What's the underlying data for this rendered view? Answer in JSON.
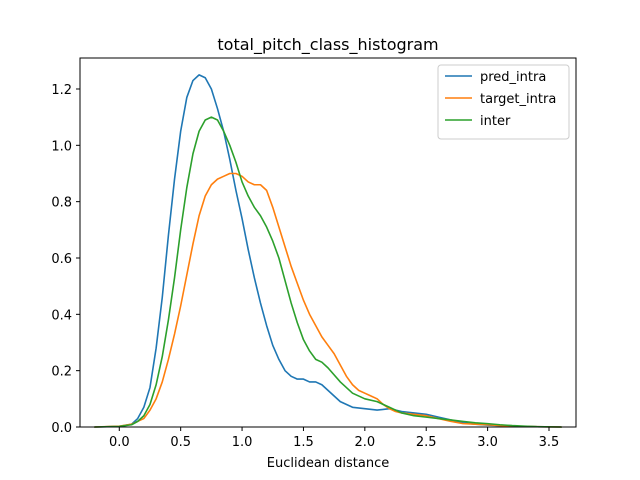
{
  "chart_data": {
    "type": "line",
    "title": "total_pitch_class_histogram",
    "xlabel": "Euclidean distance",
    "ylabel": "",
    "xlim": [
      -0.32,
      3.72
    ],
    "ylim": [
      0,
      1.31
    ],
    "xticks": [
      0.0,
      0.5,
      1.0,
      1.5,
      2.0,
      2.5,
      3.0,
      3.5
    ],
    "xtick_labels": [
      "0.0",
      "0.5",
      "1.0",
      "1.5",
      "2.0",
      "2.5",
      "3.0",
      "3.5"
    ],
    "yticks": [
      0.0,
      0.2,
      0.4,
      0.6,
      0.8,
      1.0,
      1.2
    ],
    "ytick_labels": [
      "0.0",
      "0.2",
      "0.4",
      "0.6",
      "0.8",
      "1.0",
      "1.2"
    ],
    "grid": false,
    "legend_position": "top-right",
    "series": [
      {
        "name": "pred_intra",
        "color": "#1f77b4",
        "x": [
          -0.2,
          0.0,
          0.1,
          0.15,
          0.2,
          0.25,
          0.3,
          0.35,
          0.4,
          0.45,
          0.5,
          0.55,
          0.6,
          0.65,
          0.7,
          0.75,
          0.8,
          0.85,
          0.9,
          0.95,
          1.0,
          1.05,
          1.1,
          1.15,
          1.2,
          1.25,
          1.3,
          1.35,
          1.4,
          1.45,
          1.5,
          1.55,
          1.6,
          1.65,
          1.7,
          1.8,
          1.9,
          2.0,
          2.1,
          2.2,
          2.3,
          2.4,
          2.5,
          2.6,
          2.7,
          2.8,
          2.9,
          3.0,
          3.1,
          3.2,
          3.3,
          3.4,
          3.6
        ],
        "y": [
          0.0,
          0.002,
          0.01,
          0.03,
          0.07,
          0.14,
          0.28,
          0.46,
          0.68,
          0.88,
          1.05,
          1.17,
          1.23,
          1.25,
          1.24,
          1.2,
          1.13,
          1.05,
          0.95,
          0.84,
          0.74,
          0.63,
          0.53,
          0.44,
          0.36,
          0.29,
          0.24,
          0.2,
          0.18,
          0.17,
          0.17,
          0.16,
          0.16,
          0.15,
          0.13,
          0.09,
          0.07,
          0.065,
          0.06,
          0.065,
          0.055,
          0.05,
          0.045,
          0.035,
          0.025,
          0.015,
          0.01,
          0.007,
          0.005,
          0.003,
          0.002,
          0.001,
          0.0
        ]
      },
      {
        "name": "target_intra",
        "color": "#ff7f0e",
        "x": [
          -0.2,
          0.0,
          0.1,
          0.2,
          0.25,
          0.3,
          0.35,
          0.4,
          0.45,
          0.5,
          0.55,
          0.6,
          0.65,
          0.7,
          0.75,
          0.8,
          0.85,
          0.9,
          0.95,
          1.0,
          1.05,
          1.1,
          1.15,
          1.2,
          1.25,
          1.3,
          1.35,
          1.4,
          1.45,
          1.5,
          1.55,
          1.6,
          1.65,
          1.7,
          1.75,
          1.8,
          1.85,
          1.9,
          1.95,
          2.0,
          2.05,
          2.1,
          2.15,
          2.2,
          2.25,
          2.3,
          2.4,
          2.5,
          2.6,
          2.7,
          2.8,
          2.9,
          3.0,
          3.1,
          3.2,
          3.3,
          3.4,
          3.6
        ],
        "y": [
          0.0,
          0.003,
          0.01,
          0.03,
          0.06,
          0.1,
          0.16,
          0.24,
          0.33,
          0.43,
          0.54,
          0.65,
          0.75,
          0.82,
          0.86,
          0.88,
          0.89,
          0.9,
          0.9,
          0.89,
          0.87,
          0.86,
          0.86,
          0.84,
          0.78,
          0.71,
          0.64,
          0.57,
          0.51,
          0.45,
          0.4,
          0.36,
          0.32,
          0.29,
          0.26,
          0.22,
          0.18,
          0.15,
          0.13,
          0.12,
          0.11,
          0.1,
          0.08,
          0.065,
          0.055,
          0.05,
          0.045,
          0.04,
          0.03,
          0.02,
          0.012,
          0.01,
          0.008,
          0.005,
          0.003,
          0.002,
          0.001,
          0.0
        ]
      },
      {
        "name": "inter",
        "color": "#2ca02c",
        "x": [
          -0.2,
          0.0,
          0.1,
          0.15,
          0.2,
          0.25,
          0.3,
          0.35,
          0.4,
          0.45,
          0.5,
          0.55,
          0.6,
          0.65,
          0.7,
          0.75,
          0.8,
          0.85,
          0.9,
          0.95,
          1.0,
          1.05,
          1.1,
          1.15,
          1.2,
          1.25,
          1.3,
          1.35,
          1.4,
          1.45,
          1.5,
          1.55,
          1.6,
          1.65,
          1.7,
          1.8,
          1.9,
          2.0,
          2.1,
          2.2,
          2.3,
          2.4,
          2.5,
          2.6,
          2.7,
          2.8,
          2.9,
          3.0,
          3.1,
          3.2,
          3.3,
          3.4,
          3.6
        ],
        "y": [
          0.0,
          0.002,
          0.008,
          0.02,
          0.04,
          0.08,
          0.15,
          0.25,
          0.38,
          0.53,
          0.7,
          0.85,
          0.97,
          1.05,
          1.09,
          1.1,
          1.09,
          1.05,
          1.0,
          0.94,
          0.87,
          0.82,
          0.78,
          0.75,
          0.71,
          0.66,
          0.6,
          0.52,
          0.44,
          0.37,
          0.31,
          0.27,
          0.24,
          0.23,
          0.21,
          0.16,
          0.12,
          0.1,
          0.09,
          0.07,
          0.05,
          0.04,
          0.035,
          0.03,
          0.025,
          0.02,
          0.015,
          0.012,
          0.008,
          0.005,
          0.003,
          0.001,
          0.0
        ]
      }
    ]
  }
}
